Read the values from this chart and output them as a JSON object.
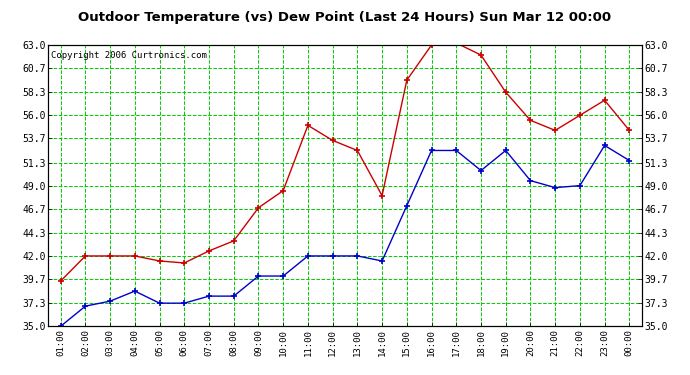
{
  "title": "Outdoor Temperature (vs) Dew Point (Last 24 Hours) Sun Mar 12 00:00",
  "copyright": "Copyright 2006 Curtronics.com",
  "x_labels": [
    "01:00",
    "02:00",
    "03:00",
    "04:00",
    "05:00",
    "06:00",
    "07:00",
    "08:00",
    "09:00",
    "10:00",
    "11:00",
    "12:00",
    "13:00",
    "14:00",
    "15:00",
    "16:00",
    "17:00",
    "18:00",
    "19:00",
    "20:00",
    "21:00",
    "22:00",
    "23:00",
    "00:00"
  ],
  "y_ticks": [
    35.0,
    37.3,
    39.7,
    42.0,
    44.3,
    46.7,
    49.0,
    51.3,
    53.7,
    56.0,
    58.3,
    60.7,
    63.0
  ],
  "ylim": [
    35.0,
    63.0
  ],
  "temp_color": "#cc0000",
  "dew_color": "#0000cc",
  "grid_color": "#00cc00",
  "bg_color": "#ffffff",
  "temp_data": [
    39.5,
    42.0,
    42.0,
    42.0,
    41.5,
    41.3,
    42.5,
    43.5,
    46.8,
    48.5,
    55.0,
    53.5,
    52.5,
    48.0,
    59.5,
    63.0,
    63.2,
    62.0,
    58.3,
    55.5,
    54.5,
    56.0,
    57.5,
    54.5
  ],
  "dew_data": [
    35.0,
    37.0,
    37.5,
    38.5,
    37.3,
    37.3,
    38.0,
    38.0,
    40.0,
    40.0,
    42.0,
    42.0,
    42.0,
    41.5,
    47.0,
    52.5,
    52.5,
    50.5,
    52.5,
    49.5,
    48.8,
    49.0,
    53.0,
    51.5
  ]
}
